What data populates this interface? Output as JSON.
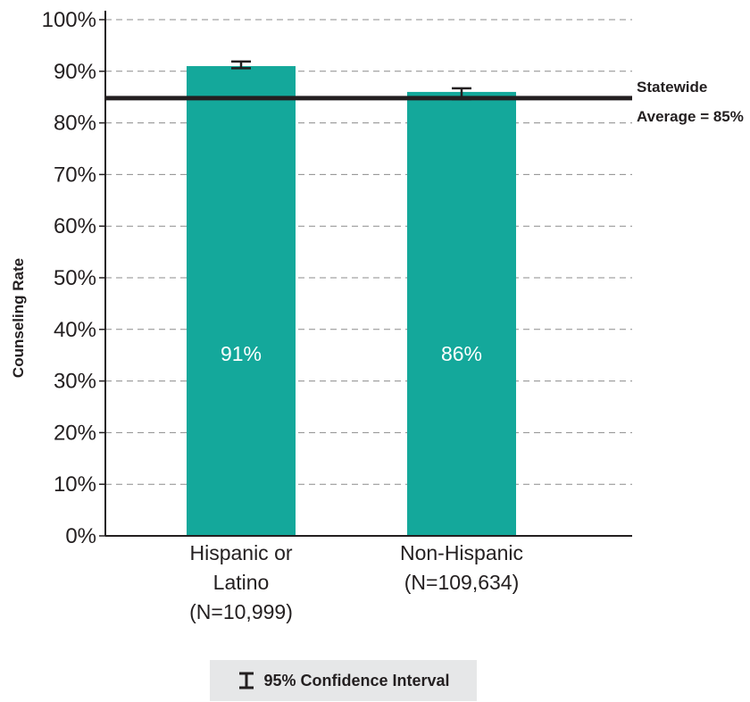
{
  "chart_data": {
    "type": "bar",
    "ylabel": "Counseling Rate",
    "xlabel": "",
    "ylim": [
      0,
      100
    ],
    "yticks": [
      "0%",
      "10%",
      "20%",
      "30%",
      "40%",
      "50%",
      "60%",
      "70%",
      "80%",
      "90%",
      "100%"
    ],
    "grid": true,
    "categories": [
      {
        "lines": [
          "Hispanic or",
          "Latino",
          "(N=10,999)"
        ],
        "value": 91,
        "label": "91%",
        "ci": [
          90.6,
          91.9
        ]
      },
      {
        "lines": [
          "Non-Hispanic",
          "(N=109,634)"
        ],
        "value": 86,
        "label": "86%",
        "ci": [
          84.6,
          86.7
        ]
      }
    ],
    "reference_line": {
      "value": 84.8,
      "label_lines": [
        "Statewide",
        "Average = 85%"
      ]
    },
    "legend": {
      "position": "bottom-center",
      "text": "95% Confidence Interval",
      "icon": "error-bar-icon"
    },
    "colors": {
      "bar": "#14a89b",
      "axis": "#231f20",
      "grid": "#8c8c8c",
      "legend_bg": "#e6e7e8"
    }
  }
}
